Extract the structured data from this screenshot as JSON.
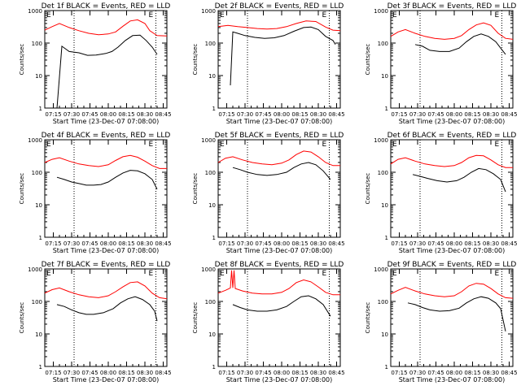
{
  "colors": {
    "events": "#000000",
    "lld": "#ff0000",
    "background": "#ffffff"
  },
  "shared": {
    "xlabel": "Start Time (23-Dec-07 07:08:00)",
    "ylabel": "Counts/sec",
    "xticks": [
      "07:15",
      "07:30",
      "07:45",
      "08:00",
      "08:15",
      "08:30",
      "08:45"
    ],
    "yticks": [
      "1",
      "10",
      "100",
      "1000"
    ],
    "xlim_minutes": [
      0,
      100
    ],
    "ylim": [
      1,
      1000
    ],
    "marker_left": "E",
    "marker_right": "E",
    "dotted_lines_min": [
      24,
      91
    ]
  },
  "chart_data": [
    {
      "type": "line",
      "title": "Det 1f BLACK = Events, RED = LLD",
      "xlabel": "Start Time (23-Dec-07 07:08:00)",
      "ylabel": "Counts/sec",
      "series": [
        {
          "name": "Events",
          "color": "#000000",
          "x": [
            10,
            14,
            20,
            28,
            35,
            42,
            50,
            55,
            60,
            66,
            72,
            78,
            83,
            88,
            92
          ],
          "y": [
            1,
            80,
            55,
            50,
            42,
            43,
            48,
            55,
            75,
            120,
            170,
            175,
            120,
            75,
            45
          ]
        },
        {
          "name": "LLD",
          "color": "#ff0000",
          "x": [
            0,
            6,
            12,
            20,
            28,
            36,
            44,
            52,
            58,
            64,
            70,
            76,
            82,
            86,
            92,
            100
          ],
          "y": [
            250,
            320,
            400,
            300,
            240,
            200,
            180,
            190,
            220,
            330,
            480,
            520,
            400,
            240,
            170,
            165
          ]
        }
      ]
    },
    {
      "type": "line",
      "title": "Det 2f BLACK = Events, RED = LLD",
      "xlabel": "Start Time (23-Dec-07 07:08:00)",
      "ylabel": "Counts/sec",
      "series": [
        {
          "name": "Events",
          "color": "#000000",
          "x": [
            10,
            12,
            16,
            22,
            30,
            38,
            46,
            54,
            62,
            70,
            76,
            82,
            88,
            94,
            96
          ],
          "y": [
            5,
            220,
            200,
            170,
            150,
            140,
            145,
            170,
            230,
            300,
            310,
            260,
            160,
            120,
            90
          ]
        },
        {
          "name": "LLD",
          "color": "#ff0000",
          "x": [
            0,
            8,
            16,
            24,
            32,
            40,
            48,
            56,
            64,
            72,
            80,
            88,
            94,
            100
          ],
          "y": [
            320,
            350,
            320,
            300,
            280,
            270,
            280,
            320,
            400,
            480,
            460,
            310,
            250,
            240
          ]
        }
      ]
    },
    {
      "type": "line",
      "title": "Det 3f BLACK = Events, RED = LLD",
      "xlabel": "Start Time (23-Dec-07 07:08:00)",
      "ylabel": "Counts/sec",
      "series": [
        {
          "name": "Events",
          "color": "#000000",
          "x": [
            20,
            26,
            32,
            40,
            48,
            56,
            62,
            68,
            74,
            80,
            86,
            90,
            94
          ],
          "y": [
            90,
            80,
            60,
            55,
            55,
            70,
            110,
            160,
            190,
            160,
            110,
            70,
            45
          ]
        },
        {
          "name": "LLD",
          "color": "#ff0000",
          "x": [
            0,
            6,
            12,
            20,
            28,
            36,
            44,
            52,
            58,
            64,
            70,
            76,
            82,
            88,
            94,
            100
          ],
          "y": [
            160,
            220,
            260,
            200,
            160,
            140,
            130,
            140,
            170,
            260,
            360,
            420,
            350,
            200,
            140,
            130
          ]
        }
      ]
    },
    {
      "type": "line",
      "title": "Det 4f BLACK = Events, RED = LLD",
      "xlabel": "Start Time (23-Dec-07 07:08:00)",
      "ylabel": "Counts/sec",
      "series": [
        {
          "name": "Events",
          "color": "#000000",
          "x": [
            10,
            16,
            22,
            28,
            34,
            40,
            46,
            52,
            58,
            64,
            70,
            76,
            82,
            88,
            92
          ],
          "y": [
            70,
            60,
            50,
            45,
            40,
            40,
            42,
            50,
            70,
            95,
            115,
            110,
            90,
            60,
            30
          ]
        },
        {
          "name": "LLD",
          "color": "#ff0000",
          "x": [
            0,
            6,
            12,
            20,
            28,
            36,
            44,
            52,
            58,
            64,
            70,
            76,
            82,
            88,
            94,
            100
          ],
          "y": [
            200,
            250,
            280,
            220,
            180,
            160,
            150,
            170,
            230,
            300,
            330,
            290,
            220,
            160,
            130,
            130
          ]
        }
      ]
    },
    {
      "type": "line",
      "title": "Det 5f BLACK = Events, RED = LLD",
      "xlabel": "Start Time (23-Dec-07 07:08:00)",
      "ylabel": "Counts/sec",
      "series": [
        {
          "name": "Events",
          "color": "#000000",
          "x": [
            12,
            18,
            24,
            32,
            40,
            48,
            56,
            62,
            68,
            74,
            80,
            86,
            92
          ],
          "y": [
            140,
            120,
            100,
            85,
            80,
            85,
            100,
            140,
            180,
            200,
            170,
            110,
            60
          ]
        },
        {
          "name": "LLD",
          "color": "#ff0000",
          "x": [
            0,
            6,
            12,
            20,
            28,
            36,
            44,
            52,
            58,
            64,
            70,
            76,
            82,
            88,
            94,
            100
          ],
          "y": [
            200,
            270,
            300,
            240,
            200,
            180,
            170,
            190,
            240,
            350,
            450,
            420,
            300,
            200,
            160,
            160
          ]
        }
      ]
    },
    {
      "type": "line",
      "title": "Det 6f BLACK = Events, RED = LLD",
      "xlabel": "Start Time (23-Dec-07 07:08:00)",
      "ylabel": "Counts/sec",
      "series": [
        {
          "name": "Events",
          "color": "#000000",
          "x": [
            18,
            24,
            30,
            38,
            46,
            54,
            60,
            66,
            72,
            78,
            84,
            90,
            94
          ],
          "y": [
            85,
            75,
            65,
            55,
            50,
            55,
            70,
            100,
            130,
            120,
            90,
            60,
            25
          ]
        },
        {
          "name": "LLD",
          "color": "#ff0000",
          "x": [
            0,
            6,
            12,
            20,
            28,
            36,
            44,
            52,
            58,
            64,
            70,
            76,
            82,
            88,
            94,
            100
          ],
          "y": [
            180,
            250,
            280,
            220,
            180,
            160,
            150,
            160,
            200,
            280,
            330,
            320,
            240,
            170,
            140,
            140
          ]
        }
      ]
    },
    {
      "type": "line",
      "title": "Det 7f BLACK = Events, RED = LLD",
      "xlabel": "Start Time (23-Dec-07 07:08:00)",
      "ylabel": "Counts/sec",
      "series": [
        {
          "name": "Events",
          "color": "#000000",
          "x": [
            10,
            16,
            22,
            28,
            34,
            40,
            48,
            56,
            62,
            68,
            74,
            80,
            86,
            90,
            92
          ],
          "y": [
            80,
            70,
            55,
            45,
            40,
            40,
            45,
            60,
            90,
            120,
            140,
            115,
            80,
            50,
            25
          ]
        },
        {
          "name": "LLD",
          "color": "#ff0000",
          "x": [
            0,
            6,
            12,
            20,
            28,
            36,
            44,
            52,
            58,
            64,
            70,
            76,
            82,
            88,
            94,
            100
          ],
          "y": [
            180,
            230,
            260,
            200,
            160,
            140,
            130,
            150,
            200,
            280,
            380,
            400,
            300,
            180,
            130,
            120
          ]
        }
      ]
    },
    {
      "type": "line",
      "title": "Det 8f BLACK = Events, RED = LLD",
      "xlabel": "Start Time (23-Dec-07 07:08:00)",
      "ylabel": "Counts/sec",
      "series": [
        {
          "name": "Events",
          "color": "#000000",
          "x": [
            12,
            18,
            24,
            32,
            40,
            48,
            56,
            62,
            68,
            74,
            80,
            86,
            92
          ],
          "y": [
            80,
            65,
            55,
            50,
            50,
            55,
            70,
            100,
            140,
            150,
            120,
            80,
            35
          ]
        },
        {
          "name": "LLD",
          "color": "#ff0000",
          "x": [
            0,
            6,
            10,
            11,
            12,
            13,
            14,
            20,
            28,
            36,
            44,
            52,
            58,
            64,
            70,
            76,
            82,
            88,
            94,
            100
          ],
          "y": [
            180,
            220,
            260,
            900,
            260,
            900,
            250,
            210,
            180,
            170,
            170,
            190,
            250,
            380,
            460,
            400,
            280,
            190,
            160,
            160
          ]
        }
      ]
    },
    {
      "type": "line",
      "title": "Det 9f BLACK = Events, RED = LLD",
      "xlabel": "Start Time (23-Dec-07 07:08:00)",
      "ylabel": "Counts/sec",
      "series": [
        {
          "name": "Events",
          "color": "#000000",
          "x": [
            14,
            20,
            26,
            32,
            40,
            48,
            56,
            62,
            68,
            74,
            80,
            86,
            90,
            94
          ],
          "y": [
            90,
            80,
            65,
            55,
            50,
            52,
            62,
            90,
            120,
            140,
            125,
            90,
            60,
            12
          ]
        },
        {
          "name": "LLD",
          "color": "#ff0000",
          "x": [
            0,
            6,
            12,
            20,
            28,
            36,
            44,
            52,
            58,
            64,
            70,
            76,
            82,
            88,
            94,
            100
          ],
          "y": [
            170,
            220,
            270,
            210,
            170,
            150,
            140,
            150,
            200,
            300,
            360,
            340,
            250,
            170,
            130,
            125
          ]
        }
      ]
    }
  ]
}
